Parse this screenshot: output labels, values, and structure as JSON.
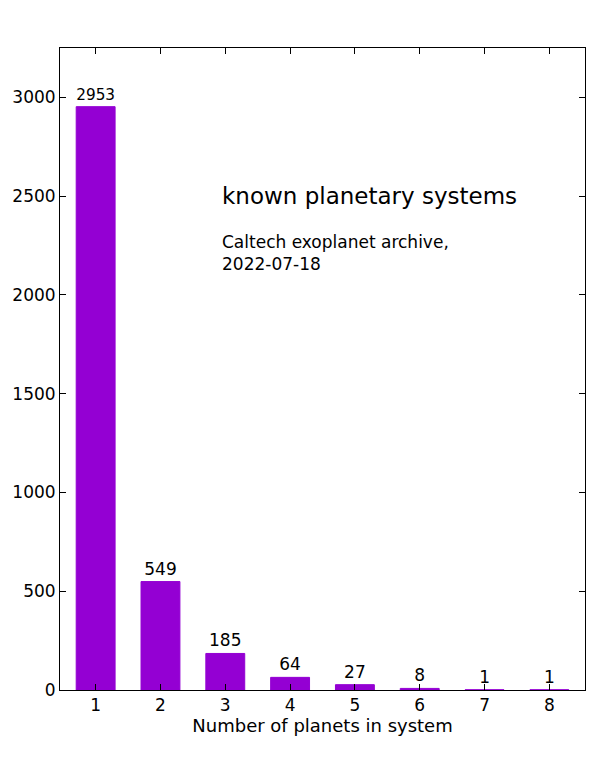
{
  "chart_data": {
    "type": "bar",
    "annotations": [
      "known planetary systems",
      "Caltech exoplanet archive,\n2022-07-18"
    ],
    "x_label": "Number of planets in system",
    "x": [
      1,
      2,
      3,
      4,
      5,
      6,
      7,
      8
    ],
    "values": [
      2953,
      549,
      185,
      64,
      27,
      8,
      1,
      1
    ],
    "color": "#9400d3",
    "xlim": [
      0.45,
      8.55
    ],
    "xticks": [
      1,
      2,
      3,
      4,
      5,
      6,
      7,
      8
    ],
    "ylim": [
      0,
      3250
    ],
    "yticks": [
      0,
      500,
      1000,
      1500,
      2000,
      2500,
      3000
    ],
    "grid": false,
    "data_labels": true
  }
}
